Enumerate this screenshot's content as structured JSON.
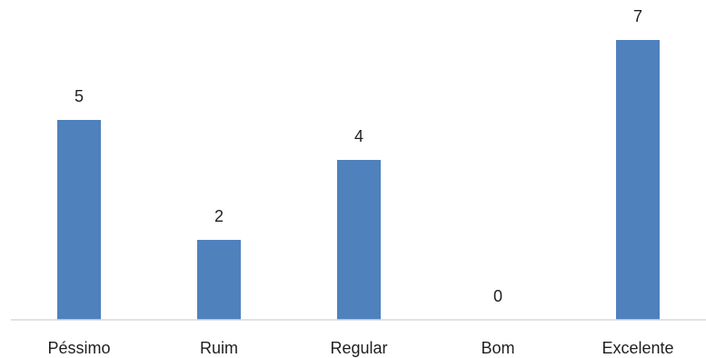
{
  "chart_data": {
    "type": "bar",
    "categories": [
      "Péssimo",
      "Ruim",
      "Regular",
      "Bom",
      "Excelente"
    ],
    "values": [
      5,
      2,
      4,
      0,
      7
    ],
    "data_labels": [
      "5",
      "2",
      "4",
      "0",
      "7"
    ],
    "ylim": [
      0,
      7
    ],
    "grid": false,
    "legend": "none",
    "bar_color": "#4f81bd",
    "axis_color": "#d9d9d9",
    "text_color": "#1f1f1f"
  }
}
